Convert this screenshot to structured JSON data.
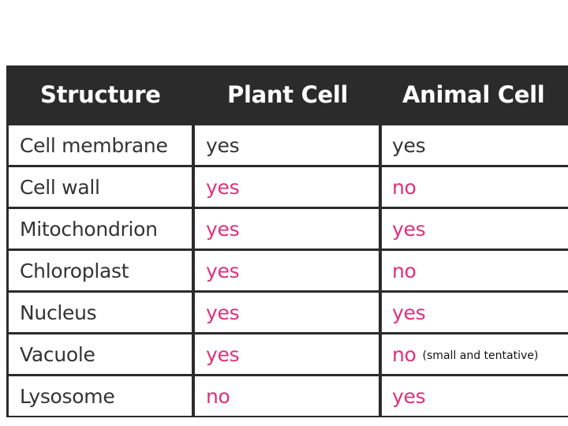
{
  "table": {
    "headers": [
      "Structure",
      "Plant Cell",
      "Animal Cell"
    ],
    "rows": [
      {
        "structure": "Cell membrane",
        "plant": "yes",
        "animal": "yes",
        "highlight": false
      },
      {
        "structure": "Cell wall",
        "plant": "yes",
        "animal": "no",
        "highlight": true
      },
      {
        "structure": "Mitochondrion",
        "plant": "yes",
        "animal": "yes",
        "highlight": true
      },
      {
        "structure": "Chloroplast",
        "plant": "yes",
        "animal": "no",
        "highlight": true
      },
      {
        "structure": "Nucleus",
        "plant": "yes",
        "animal": "yes",
        "highlight": true
      },
      {
        "structure": "Vacuole",
        "plant": "yes",
        "animal": "no",
        "highlight": true,
        "note": "(small and tentative)"
      },
      {
        "structure": "Lysosome",
        "plant": "no",
        "animal": "yes",
        "highlight": true
      }
    ]
  },
  "colors": {
    "header_bg": "#2b2b2b",
    "header_text": "#ffffff",
    "value_accent": "#e0307a",
    "body_text": "#333333"
  }
}
